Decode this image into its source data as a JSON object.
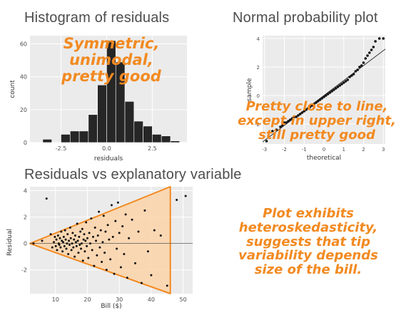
{
  "headings": {
    "histogram": "Histogram of residuals",
    "qq": "Normal probability plot",
    "scatter": "Residuals vs explanatory variable"
  },
  "annotations": {
    "histogram": "Symmetric, unimodal,\npretty good",
    "qq": "Pretty close to line,\nexcept in upper right,\nstill pretty good",
    "scatter": "Plot exhibits\nheteroskedasticity,\nsuggests that tip\nvariability depends\nsize of the bill."
  },
  "colors": {
    "annotation": "#f28a21",
    "triangle_fill": "#fbd3a8",
    "triangle_stroke": "#f28a21",
    "bar": "#262626",
    "panel": "#ebebeb"
  },
  "chart_data": [
    {
      "type": "bar",
      "title": "Histogram of residuals",
      "xlabel": "residuals",
      "ylabel": "count",
      "bin_centers": [
        -3.25,
        -2.75,
        -2.25,
        -1.75,
        -1.25,
        -0.75,
        -0.25,
        0.25,
        0.75,
        1.25,
        1.75,
        2.25,
        2.75,
        3.25,
        3.75
      ],
      "values": [
        2,
        0,
        5,
        7,
        7,
        17,
        35,
        62,
        49,
        25,
        13,
        10,
        5,
        4,
        1
      ],
      "bin_width": 0.5,
      "xlim": [
        -4.2,
        4.4
      ],
      "ylim": [
        0,
        65
      ],
      "xticks": [
        -2.5,
        0.0,
        2.5
      ],
      "xtick_labels": [
        "-2.5",
        "0.0",
        "2.5"
      ],
      "yticks": [
        0,
        20,
        40,
        60
      ],
      "ytick_labels": [
        "0",
        "20",
        "40",
        "60"
      ]
    },
    {
      "type": "scatter",
      "title": "Normal probability plot",
      "xlabel": "theoretical",
      "ylabel": "sample",
      "xlim": [
        -3.1,
        3.1
      ],
      "ylim": [
        -3.4,
        4.2
      ],
      "xticks": [
        -3,
        -2,
        -1,
        0,
        1,
        2,
        3
      ],
      "xtick_labels": [
        "-3",
        "-2",
        "-1",
        "0",
        "1",
        "2",
        "3"
      ],
      "yticks": [
        -2,
        0,
        2,
        4
      ],
      "ytick_labels": [
        "-2",
        "0",
        "2",
        "4"
      ],
      "reference_line": {
        "intercept": 0.0,
        "slope": 1.05
      },
      "points": [
        [
          -2.9,
          -3.2
        ],
        [
          -2.6,
          -2.5
        ],
        [
          -2.4,
          -2.4
        ],
        [
          -2.2,
          -2.2
        ],
        [
          -2.1,
          -2.1
        ],
        [
          -2.0,
          -1.9
        ],
        [
          -1.9,
          -1.9
        ],
        [
          -1.8,
          -1.8
        ],
        [
          -1.7,
          -1.7
        ],
        [
          -1.6,
          -1.6
        ],
        [
          -1.5,
          -1.5
        ],
        [
          -1.4,
          -1.5
        ],
        [
          -1.3,
          -1.4
        ],
        [
          -1.2,
          -1.3
        ],
        [
          -1.1,
          -1.2
        ],
        [
          -1.0,
          -1.1
        ],
        [
          -0.9,
          -1.0
        ],
        [
          -0.8,
          -0.9
        ],
        [
          -0.7,
          -0.8
        ],
        [
          -0.6,
          -0.7
        ],
        [
          -0.5,
          -0.6
        ],
        [
          -0.4,
          -0.5
        ],
        [
          -0.3,
          -0.4
        ],
        [
          -0.2,
          -0.3
        ],
        [
          -0.1,
          -0.2
        ],
        [
          0.0,
          -0.1
        ],
        [
          0.1,
          0.0
        ],
        [
          0.2,
          0.1
        ],
        [
          0.3,
          0.2
        ],
        [
          0.4,
          0.3
        ],
        [
          0.5,
          0.4
        ],
        [
          0.6,
          0.5
        ],
        [
          0.7,
          0.6
        ],
        [
          0.8,
          0.7
        ],
        [
          0.9,
          0.8
        ],
        [
          1.0,
          0.9
        ],
        [
          1.1,
          1.0
        ],
        [
          1.2,
          1.1
        ],
        [
          1.3,
          1.3
        ],
        [
          1.4,
          1.4
        ],
        [
          1.5,
          1.5
        ],
        [
          1.6,
          1.7
        ],
        [
          1.7,
          1.8
        ],
        [
          1.8,
          2.0
        ],
        [
          1.9,
          2.1
        ],
        [
          2.0,
          2.3
        ],
        [
          2.1,
          2.6
        ],
        [
          2.2,
          2.8
        ],
        [
          2.3,
          3.0
        ],
        [
          2.4,
          3.2
        ],
        [
          2.5,
          3.4
        ],
        [
          2.6,
          3.8
        ],
        [
          2.8,
          4.0
        ],
        [
          3.0,
          4.0
        ]
      ]
    },
    {
      "type": "scatter",
      "title": "Residuals vs explanatory variable",
      "xlabel": "Bill ($)",
      "ylabel": "Residual",
      "xlim": [
        2,
        53
      ],
      "ylim": [
        -3.8,
        4.3
      ],
      "xticks": [
        10,
        20,
        30,
        40,
        50
      ],
      "xtick_labels": [
        "10",
        "20",
        "30",
        "40",
        "50"
      ],
      "yticks": [
        -2,
        0,
        2,
        4
      ],
      "ytick_labels": [
        "-2",
        "0",
        "2",
        "4"
      ],
      "reference_line_y": 0,
      "points": [
        [
          3.1,
          0.0
        ],
        [
          5.8,
          0.2
        ],
        [
          7.2,
          3.4
        ],
        [
          8.5,
          0.7
        ],
        [
          9.0,
          -0.3
        ],
        [
          9.5,
          0.1
        ],
        [
          9.8,
          0.5
        ],
        [
          10.1,
          -0.2
        ],
        [
          10.3,
          0.3
        ],
        [
          10.5,
          -0.5
        ],
        [
          10.8,
          0.6
        ],
        [
          11.0,
          0.0
        ],
        [
          11.2,
          -0.1
        ],
        [
          11.4,
          0.4
        ],
        [
          11.6,
          -0.3
        ],
        [
          11.8,
          0.9
        ],
        [
          12.0,
          0.2
        ],
        [
          12.2,
          -0.6
        ],
        [
          12.4,
          0.1
        ],
        [
          12.6,
          0.5
        ],
        [
          12.8,
          -0.2
        ],
        [
          13.0,
          1.0
        ],
        [
          13.2,
          0.3
        ],
        [
          13.4,
          -0.4
        ],
        [
          13.6,
          0.0
        ],
        [
          13.8,
          0.7
        ],
        [
          14.0,
          -0.8
        ],
        [
          14.2,
          0.2
        ],
        [
          14.4,
          -0.1
        ],
        [
          14.6,
          1.2
        ],
        [
          14.8,
          0.4
        ],
        [
          15.0,
          -0.5
        ],
        [
          15.2,
          0.0
        ],
        [
          15.4,
          0.8
        ],
        [
          15.6,
          -0.3
        ],
        [
          15.8,
          0.3
        ],
        [
          16.0,
          -1.0
        ],
        [
          16.2,
          0.6
        ],
        [
          16.4,
          0.1
        ],
        [
          16.6,
          -0.2
        ],
        [
          16.8,
          1.5
        ],
        [
          17.0,
          0.2
        ],
        [
          17.2,
          -0.7
        ],
        [
          17.4,
          0.5
        ],
        [
          17.6,
          -0.1
        ],
        [
          17.8,
          0.9
        ],
        [
          18.0,
          -0.4
        ],
        [
          18.2,
          0.0
        ],
        [
          18.4,
          1.1
        ],
        [
          18.6,
          -1.3
        ],
        [
          18.8,
          0.3
        ],
        [
          19.0,
          0.7
        ],
        [
          19.2,
          -0.6
        ],
        [
          19.4,
          0.2
        ],
        [
          19.6,
          1.6
        ],
        [
          19.8,
          -0.2
        ],
        [
          20.0,
          0.4
        ],
        [
          20.3,
          -1.1
        ],
        [
          20.6,
          0.8
        ],
        [
          20.9,
          0.0
        ],
        [
          21.2,
          1.9
        ],
        [
          21.5,
          -0.5
        ],
        [
          21.8,
          0.5
        ],
        [
          22.1,
          -1.7
        ],
        [
          22.4,
          1.2
        ],
        [
          22.7,
          0.2
        ],
        [
          23.0,
          -0.9
        ],
        [
          23.3,
          0.6
        ],
        [
          23.6,
          2.4
        ],
        [
          23.9,
          -0.3
        ],
        [
          24.2,
          1.0
        ],
        [
          24.5,
          -1.4
        ],
        [
          24.8,
          0.1
        ],
        [
          25.1,
          2.1
        ],
        [
          25.4,
          -0.7
        ],
        [
          25.7,
          0.9
        ],
        [
          26.0,
          -2.0
        ],
        [
          26.4,
          1.4
        ],
        [
          26.8,
          0.3
        ],
        [
          27.2,
          -1.2
        ],
        [
          27.6,
          2.9
        ],
        [
          28.0,
          0.5
        ],
        [
          28.4,
          -2.3
        ],
        [
          28.8,
          1.7
        ],
        [
          29.2,
          -0.4
        ],
        [
          29.6,
          3.1
        ],
        [
          30.0,
          0.8
        ],
        [
          30.5,
          -1.8
        ],
        [
          31.0,
          1.3
        ],
        [
          31.5,
          -0.8
        ],
        [
          32.0,
          2.2
        ],
        [
          32.5,
          -2.6
        ],
        [
          33.0,
          0.4
        ],
        [
          34.0,
          1.8
        ],
        [
          35.0,
          -1.5
        ],
        [
          36.0,
          0.9
        ],
        [
          37.0,
          -3.0
        ],
        [
          38.0,
          2.5
        ],
        [
          39.0,
          -0.6
        ],
        [
          40.0,
          -2.4
        ],
        [
          41.0,
          1.0
        ],
        [
          43.0,
          0.6
        ],
        [
          45.0,
          -3.2
        ],
        [
          48.0,
          3.3
        ],
        [
          50.8,
          3.6
        ]
      ]
    }
  ]
}
